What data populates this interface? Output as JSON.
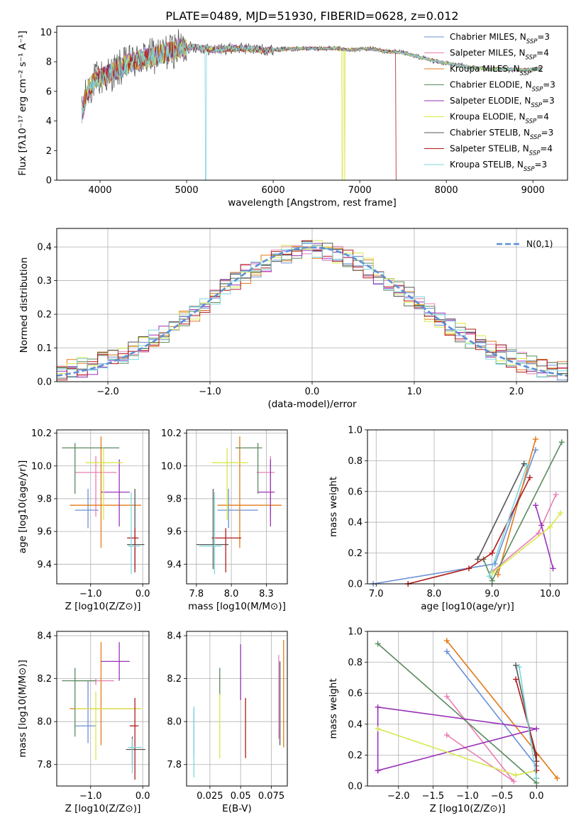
{
  "figure": {
    "title": "PLATE=0489, MJD=51930, FIBERID=0628, z=0.012",
    "colors": [
      "#6b8fd6",
      "#e87fb3",
      "#e07b1a",
      "#5a8a5e",
      "#9a32b8",
      "#d8e84a",
      "#555555",
      "#b01a1a",
      "#7dd6dc"
    ]
  },
  "chart_data": [
    {
      "id": "spectrum",
      "type": "line",
      "title": "PLATE=0489, MJD=51930, FIBERID=0628, z=0.012",
      "xlabel": "wavelength [Angstrom, rest frame]",
      "ylabel": "Flux [fλ10⁻¹⁷ erg cm⁻² s⁻¹ A⁻¹]",
      "xlim": [
        3500,
        9400
      ],
      "ylim": [
        0,
        10.4
      ],
      "xticks": [
        4000,
        5000,
        6000,
        7000,
        8000,
        9000
      ],
      "yticks": [
        0,
        2,
        4,
        6,
        8,
        10
      ],
      "legend_position": "top-right",
      "legend": [
        "Chabrier MILES, NSSP=3",
        "Salpeter MILES, NSSP=4",
        "Kroupa MILES, NSSP=2",
        "Chabrier ELODIE, NSSP=3",
        "Salpeter ELODIE, NSSP=3",
        "Kroupa ELODIE, NSSP=4",
        "Chabrier STELIB, NSSP=3",
        "Salpeter STELIB, NSSP=4",
        "Kroupa STELIB, NSSP=3"
      ],
      "continuum": {
        "x": [
          3790,
          3850,
          3950,
          4050,
          4150,
          4300,
          4500,
          4700,
          4900,
          5100,
          5300,
          5500,
          5700,
          5900,
          6100,
          6300,
          6500,
          6700,
          6900,
          7100,
          7300,
          7500,
          7700,
          7900,
          8100,
          8300,
          8500,
          8700,
          8900,
          9100
        ],
        "y": [
          4.5,
          6.0,
          6.8,
          7.0,
          7.3,
          7.8,
          8.2,
          8.5,
          8.9,
          9.0,
          8.8,
          8.9,
          8.9,
          8.8,
          8.85,
          8.9,
          8.9,
          8.9,
          8.8,
          8.9,
          8.7,
          8.6,
          8.3,
          8.0,
          7.8,
          7.6,
          7.5,
          7.5,
          7.45,
          7.5
        ]
      },
      "dropouts": [
        {
          "x": 5220,
          "series": "Kroupa STELIB, NSSP=3"
        },
        {
          "x": 6800,
          "series": "Kroupa ELODIE, NSSP=4"
        },
        {
          "x": 7420,
          "series": "Salpeter STELIB, NSSP=4"
        }
      ]
    },
    {
      "id": "residuals",
      "type": "histogram",
      "xlabel": "(data-model)/error",
      "ylabel": "Normed distribution",
      "xlim": [
        -2.5,
        2.5
      ],
      "ylim": [
        0,
        0.455
      ],
      "xticks": [
        -2,
        -1,
        0,
        1,
        2
      ],
      "yticks": [
        0.0,
        0.1,
        0.2,
        0.3,
        0.4
      ],
      "legend_position": "top-right",
      "gaussian_label": "N(0,1)",
      "bin_width": 0.1
    },
    {
      "id": "age_vs_Z",
      "type": "errorbar",
      "xlabel": "Z [log10(Z/Z⊙)]",
      "ylabel": "age  [log10(age/yr)]",
      "xlim": [
        -1.65,
        0.12
      ],
      "ylim": [
        9.28,
        10.22
      ],
      "xticks": [
        -1,
        0
      ],
      "yticks": [
        9.4,
        9.6,
        9.8,
        10.0,
        10.2
      ],
      "points": [
        {
          "x": -1.05,
          "y": 9.73,
          "xe": [
            -1.3,
            -0.85
          ],
          "ye": [
            9.62,
            9.86
          ]
        },
        {
          "x": -0.9,
          "y": 9.96,
          "xe": [
            -1.3,
            -0.5
          ],
          "ye": [
            9.69,
            10.06
          ]
        },
        {
          "x": -0.8,
          "y": 9.76,
          "xe": [
            -1.4,
            -0.03
          ],
          "ye": [
            9.5,
            10.18
          ]
        },
        {
          "x": -1.3,
          "y": 10.11,
          "xe": [
            -1.55,
            -0.45
          ],
          "ye": [
            9.83,
            10.14
          ]
        },
        {
          "x": -0.45,
          "y": 9.84,
          "xe": [
            -0.8,
            -0.25
          ],
          "ye": [
            9.63,
            10.04
          ]
        },
        {
          "x": -0.75,
          "y": 10.02,
          "xe": [
            -1.1,
            -0.38
          ],
          "ye": [
            9.67,
            10.11
          ]
        },
        {
          "x": -0.15,
          "y": 9.52,
          "xe": [
            -0.3,
            0.03
          ],
          "ye": [
            9.37,
            9.86
          ]
        },
        {
          "x": -0.15,
          "y": 9.56,
          "xe": [
            -0.3,
            -0.08
          ],
          "ye": [
            9.35,
            9.62
          ]
        },
        {
          "x": -0.22,
          "y": 9.51,
          "xe": [
            -0.28,
            -0.05
          ],
          "ye": [
            9.34,
            9.84
          ]
        }
      ]
    },
    {
      "id": "age_vs_mass",
      "type": "errorbar",
      "xlabel": "mass [log10(M/M⊙)]",
      "ylabel": "",
      "xlim": [
        7.68,
        8.4
      ],
      "ylim": [
        9.28,
        10.22
      ],
      "xticks": [
        7.75,
        8.0,
        8.25
      ],
      "yticks": [
        9.4,
        9.6,
        9.8,
        10.0,
        10.2
      ],
      "points": [
        {
          "x": 7.98,
          "y": 9.73,
          "xe": [
            7.9,
            8.19
          ],
          "ye": [
            9.62,
            9.86
          ]
        },
        {
          "x": 8.28,
          "y": 9.96,
          "xe": [
            8.18,
            8.31
          ],
          "ye": [
            9.69,
            10.06
          ]
        },
        {
          "x": 8.06,
          "y": 9.76,
          "xe": [
            7.9,
            8.36
          ],
          "ye": [
            9.5,
            10.18
          ]
        },
        {
          "x": 8.19,
          "y": 10.11,
          "xe": [
            8.03,
            8.22
          ],
          "ye": [
            9.83,
            10.14
          ]
        },
        {
          "x": 8.28,
          "y": 9.84,
          "xe": [
            8.19,
            8.31
          ],
          "ye": [
            9.63,
            10.04
          ]
        },
        {
          "x": 7.97,
          "y": 10.02,
          "xe": [
            7.86,
            8.12
          ],
          "ye": [
            9.67,
            10.11
          ]
        },
        {
          "x": 7.87,
          "y": 9.52,
          "xe": [
            7.75,
            7.98
          ],
          "ye": [
            9.37,
            9.86
          ]
        },
        {
          "x": 7.96,
          "y": 9.56,
          "xe": [
            7.86,
            8.07
          ],
          "ye": [
            9.35,
            9.62
          ]
        },
        {
          "x": 7.88,
          "y": 9.51,
          "xe": [
            7.77,
            7.93
          ],
          "ye": [
            9.34,
            9.84
          ]
        }
      ]
    },
    {
      "id": "weight_vs_age",
      "type": "line",
      "xlabel": "age  [log10(age/yr)]",
      "ylabel": "mass weight",
      "xlim": [
        6.85,
        10.3
      ],
      "ylim": [
        0.0,
        1.0
      ],
      "xticks": [
        7,
        8,
        9,
        10
      ],
      "yticks": [
        0.0,
        0.2,
        0.4,
        0.6,
        0.8,
        1.0
      ],
      "series": [
        {
          "x": [
            6.95,
            9.05,
            9.75
          ],
          "y": [
            0.0,
            0.13,
            0.87
          ]
        },
        {
          "x": [
            9.0,
            9.8,
            10.1
          ],
          "y": [
            0.08,
            0.33,
            0.58
          ]
        },
        {
          "x": [
            9.1,
            9.75
          ],
          "y": [
            0.06,
            0.94
          ]
        },
        {
          "x": [
            8.85,
            9.0,
            10.2
          ],
          "y": [
            0.16,
            0.02,
            0.92
          ]
        },
        {
          "x": [
            9.75,
            9.85,
            10.05
          ],
          "y": [
            0.51,
            0.38,
            0.1
          ]
        },
        {
          "x": [
            9.0,
            10.0,
            10.18
          ],
          "y": [
            0.07,
            0.37,
            0.46
          ]
        },
        {
          "x": [
            8.75,
            9.55
          ],
          "y": [
            0.16,
            0.78
          ]
        },
        {
          "x": [
            7.55,
            8.6,
            9.0,
            9.65
          ],
          "y": [
            0.0,
            0.1,
            0.2,
            0.69
          ]
        },
        {
          "x": [
            8.95,
            9.6
          ],
          "y": [
            0.05,
            0.77
          ]
        }
      ]
    },
    {
      "id": "mass_vs_Z",
      "type": "errorbar",
      "xlabel": "Z [log10(Z/Z⊙)]",
      "ylabel": "mass [log10(M/M⊙)]",
      "xlim": [
        -1.65,
        0.12
      ],
      "ylim": [
        7.7,
        8.42
      ],
      "xticks": [
        -1,
        0
      ],
      "yticks": [
        7.8,
        8.0,
        8.2,
        8.4
      ],
      "points": [
        {
          "x": -1.05,
          "y": 7.98,
          "xe": [
            -1.3,
            -0.9
          ],
          "ye": [
            7.9,
            8.19
          ]
        },
        {
          "x": -0.9,
          "y": 8.19,
          "xe": [
            -1.3,
            -0.55
          ],
          "ye": [
            8.17,
            8.2
          ]
        },
        {
          "x": -0.8,
          "y": 8.06,
          "xe": [
            -1.4,
            -0.05
          ],
          "ye": [
            7.89,
            8.37
          ]
        },
        {
          "x": -1.3,
          "y": 8.19,
          "xe": [
            -1.55,
            -0.9
          ],
          "ye": [
            7.93,
            8.25
          ]
        },
        {
          "x": -0.45,
          "y": 8.28,
          "xe": [
            -0.8,
            -0.25
          ],
          "ye": [
            8.19,
            8.37
          ]
        },
        {
          "x": -0.9,
          "y": 8.06,
          "xe": [
            -1.3,
            -0.02
          ],
          "ye": [
            7.82,
            8.14
          ]
        },
        {
          "x": -0.2,
          "y": 7.87,
          "xe": [
            -0.32,
            0.05
          ],
          "ye": [
            7.8,
            7.93
          ]
        },
        {
          "x": -0.15,
          "y": 7.98,
          "xe": [
            -0.25,
            -0.08
          ],
          "ye": [
            7.73,
            8.11
          ]
        },
        {
          "x": -0.2,
          "y": 7.88,
          "xe": [
            -0.28,
            -0.02
          ],
          "ye": [
            7.76,
            7.92
          ]
        }
      ]
    },
    {
      "id": "mass_vs_ebv",
      "type": "errorbar",
      "xlabel": "E(B-V)",
      "ylabel": "",
      "xlim": [
        0.006,
        0.088
      ],
      "ylim": [
        7.7,
        8.42
      ],
      "xticks": [
        0.025,
        0.05,
        0.075
      ],
      "yticks": [
        7.8,
        8.0,
        8.2,
        8.4
      ],
      "points": [
        {
          "x": 0.012,
          "ye": [
            7.84,
            8.06
          ]
        },
        {
          "x": 0.081,
          "ye": [
            7.92,
            8.31
          ]
        },
        {
          "x": 0.085,
          "ye": [
            7.88,
            8.38
          ]
        },
        {
          "x": 0.033,
          "ye": [
            8.12,
            8.25
          ]
        },
        {
          "x": 0.05,
          "ye": [
            8.1,
            8.36
          ]
        },
        {
          "x": 0.033,
          "ye": [
            7.83,
            8.13
          ]
        },
        {
          "x": 0.082,
          "ye": [
            7.89,
            8.28
          ]
        },
        {
          "x": 0.054,
          "ye": [
            7.83,
            8.11
          ]
        },
        {
          "x": 0.012,
          "ye": [
            7.74,
            8.07
          ]
        }
      ]
    },
    {
      "id": "weight_vs_Z",
      "type": "line",
      "xlabel": "Z [log10(Z/Z⊙)]",
      "ylabel": "mass weight",
      "xlim": [
        -2.45,
        0.45
      ],
      "ylim": [
        0.0,
        1.0
      ],
      "xticks": [
        -2.0,
        -1.5,
        -1.0,
        -0.5,
        0.0
      ],
      "yticks": [
        0.0,
        0.2,
        0.4,
        0.6,
        0.8,
        1.0
      ],
      "series": [
        {
          "x": [
            -1.3,
            0.0
          ],
          "y": [
            0.87,
            0.13
          ]
        },
        {
          "x": [
            -1.3,
            -0.33,
            -1.3
          ],
          "y": [
            0.58,
            0.03,
            0.33
          ]
        },
        {
          "x": [
            -1.3,
            0.3
          ],
          "y": [
            0.94,
            0.05
          ]
        },
        {
          "x": [
            -2.3,
            0.0,
            0.0
          ],
          "y": [
            0.92,
            0.02,
            0.05
          ]
        },
        {
          "x": [
            -2.3,
            0.0,
            -2.3,
            -2.3
          ],
          "y": [
            0.1,
            0.37,
            0.51,
            0.1
          ]
        },
        {
          "x": [
            -2.3,
            -0.3,
            0.0
          ],
          "y": [
            0.37,
            0.07,
            0.1
          ]
        },
        {
          "x": [
            -0.3,
            0.0
          ],
          "y": [
            0.78,
            0.16
          ]
        },
        {
          "x": [
            -0.3,
            0.0,
            0.0
          ],
          "y": [
            0.69,
            0.2,
            0.1
          ]
        },
        {
          "x": [
            -0.25,
            0.0
          ],
          "y": [
            0.77,
            0.05
          ]
        }
      ]
    }
  ]
}
